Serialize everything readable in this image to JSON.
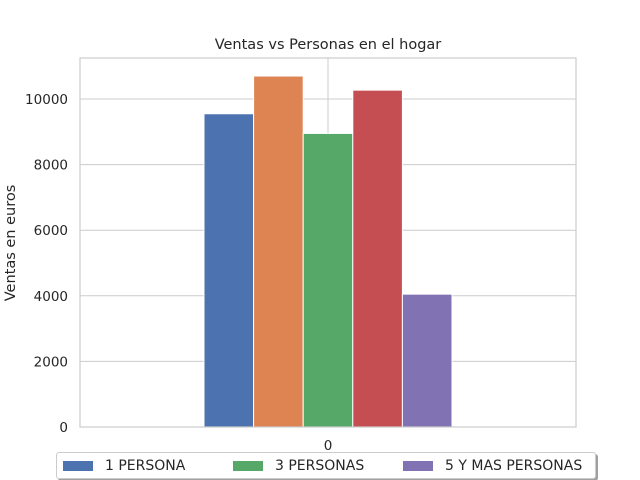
{
  "chart_data": {
    "type": "bar",
    "title": "Ventas vs Personas en el hogar",
    "xlabel": "",
    "ylabel": "Ventas en euros",
    "categories": [
      "0"
    ],
    "ylim": [
      0,
      11250
    ],
    "yticks": [
      0,
      2000,
      4000,
      6000,
      8000,
      10000
    ],
    "grid": true,
    "legend_position": "bottom",
    "series": [
      {
        "name": "1 PERSONA",
        "color": "#4c72b0",
        "values": [
          9550
        ],
        "in_legend": true
      },
      {
        "name": "",
        "color": "#dd8452",
        "values": [
          10700
        ],
        "in_legend": false
      },
      {
        "name": "3 PERSONAS",
        "color": "#55a868",
        "values": [
          8950
        ],
        "in_legend": true
      },
      {
        "name": "",
        "color": "#c44e52",
        "values": [
          10270
        ],
        "in_legend": false
      },
      {
        "name": "5 Y MAS PERSONAS",
        "color": "#8172b3",
        "values": [
          4050
        ],
        "in_legend": true
      }
    ]
  }
}
